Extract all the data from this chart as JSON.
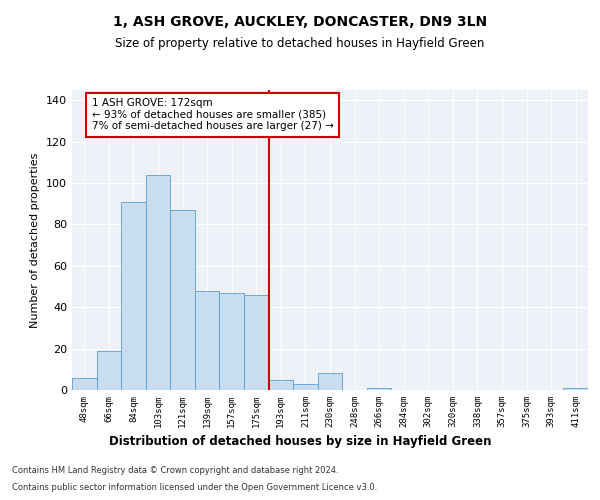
{
  "title": "1, ASH GROVE, AUCKLEY, DONCASTER, DN9 3LN",
  "subtitle": "Size of property relative to detached houses in Hayfield Green",
  "xlabel": "Distribution of detached houses by size in Hayfield Green",
  "ylabel": "Number of detached properties",
  "categories": [
    "48sqm",
    "66sqm",
    "84sqm",
    "103sqm",
    "121sqm",
    "139sqm",
    "157sqm",
    "175sqm",
    "193sqm",
    "211sqm",
    "230sqm",
    "248sqm",
    "266sqm",
    "284sqm",
    "302sqm",
    "320sqm",
    "338sqm",
    "357sqm",
    "375sqm",
    "393sqm",
    "411sqm"
  ],
  "values": [
    6,
    19,
    91,
    104,
    87,
    48,
    47,
    46,
    5,
    3,
    8,
    0,
    1,
    0,
    0,
    0,
    0,
    0,
    0,
    0,
    1
  ],
  "bar_color": "#c9ddf0",
  "bar_edgecolor": "#5a9fd4",
  "vline_color": "#cc0000",
  "annotation_title": "1 ASH GROVE: 172sqm",
  "annotation_line1": "← 93% of detached houses are smaller (385)",
  "annotation_line2": "7% of semi-detached houses are larger (27) →",
  "annotation_box_color": "#cc0000",
  "annotation_fill": "#ffffff",
  "ylim": [
    0,
    145
  ],
  "yticks": [
    0,
    20,
    40,
    60,
    80,
    100,
    120,
    140
  ],
  "footer1": "Contains HM Land Registry data © Crown copyright and database right 2024.",
  "footer2": "Contains public sector information licensed under the Open Government Licence v3.0.",
  "bg_color": "#eef2f8"
}
